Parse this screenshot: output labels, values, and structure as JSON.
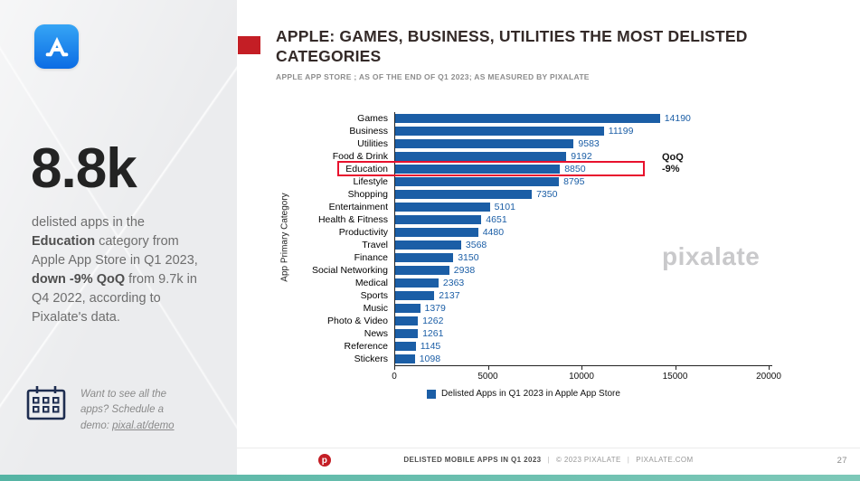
{
  "colors": {
    "accent_red": "#c41e25",
    "bar_blue": "#1b5ea6",
    "highlight_red": "#e8112d",
    "teal_bar": "#55b4a4",
    "app_icon_blue_top": "#36a5f5",
    "app_icon_blue_bottom": "#0b6ce4"
  },
  "sidebar": {
    "stat": "8.8k",
    "description": [
      {
        "text": "delisted apps in the ",
        "bold": false
      },
      {
        "text": "Education",
        "bold": true
      },
      {
        "text": " category from Apple App Store in Q1 2023, ",
        "bold": false
      },
      {
        "text": "down -9% QoQ",
        "bold": true
      },
      {
        "text": " from 9.7k in Q4 2022, according to Pixalate's data.",
        "bold": false
      }
    ],
    "demo_prompt": "Want to see all the apps? Schedule a demo: ",
    "demo_link": "pixal.at/demo",
    "icons": {
      "app_store": "app-store-icon (white A on blue gradient rounded square)",
      "calendar": "calendar-grid-icon"
    }
  },
  "header": {
    "title": "APPLE: GAMES, BUSINESS, UTILITIES THE MOST DELISTED CATEGORIES",
    "subtitle": "APPLE APP STORE ; AS OF THE END OF Q1 2023; AS MEASURED BY PIXALATE"
  },
  "chart_data": {
    "type": "bar",
    "orientation": "horizontal",
    "title": "",
    "ylabel": "App Primary Category",
    "xlabel": "",
    "categories": [
      "Games",
      "Business",
      "Utilities",
      "Food & Drink",
      "Education",
      "Lifestyle",
      "Shopping",
      "Entertainment",
      "Health & Fitness",
      "Productivity",
      "Travel",
      "Finance",
      "Social Networking",
      "Medical",
      "Sports",
      "Music",
      "Photo & Video",
      "News",
      "Reference",
      "Stickers"
    ],
    "values": [
      14190,
      11199,
      9583,
      9192,
      8850,
      8795,
      7350,
      5101,
      4651,
      4480,
      3568,
      3150,
      2938,
      2363,
      2137,
      1379,
      1262,
      1261,
      1145,
      1098
    ],
    "xlim": [
      0,
      20000
    ],
    "x_ticks": [
      0,
      5000,
      10000,
      15000,
      20000
    ],
    "grid": "off",
    "legend": "Delisted Apps in Q1 2023 in Apple App Store",
    "legend_position": "bottom",
    "bar_color": "#1b5ea6",
    "highlight": {
      "category": "Education",
      "annotation_line1": "QoQ",
      "annotation_line2": "-9%",
      "box_color": "#e8112d"
    }
  },
  "watermark": "pixalate",
  "footer": {
    "report": "DELISTED MOBILE APPS IN Q1 2023",
    "separator": "|",
    "copyright": "© 2023 PIXALATE",
    "site": "PIXALATE.COM",
    "page": "27",
    "logo_glyph": "p"
  }
}
